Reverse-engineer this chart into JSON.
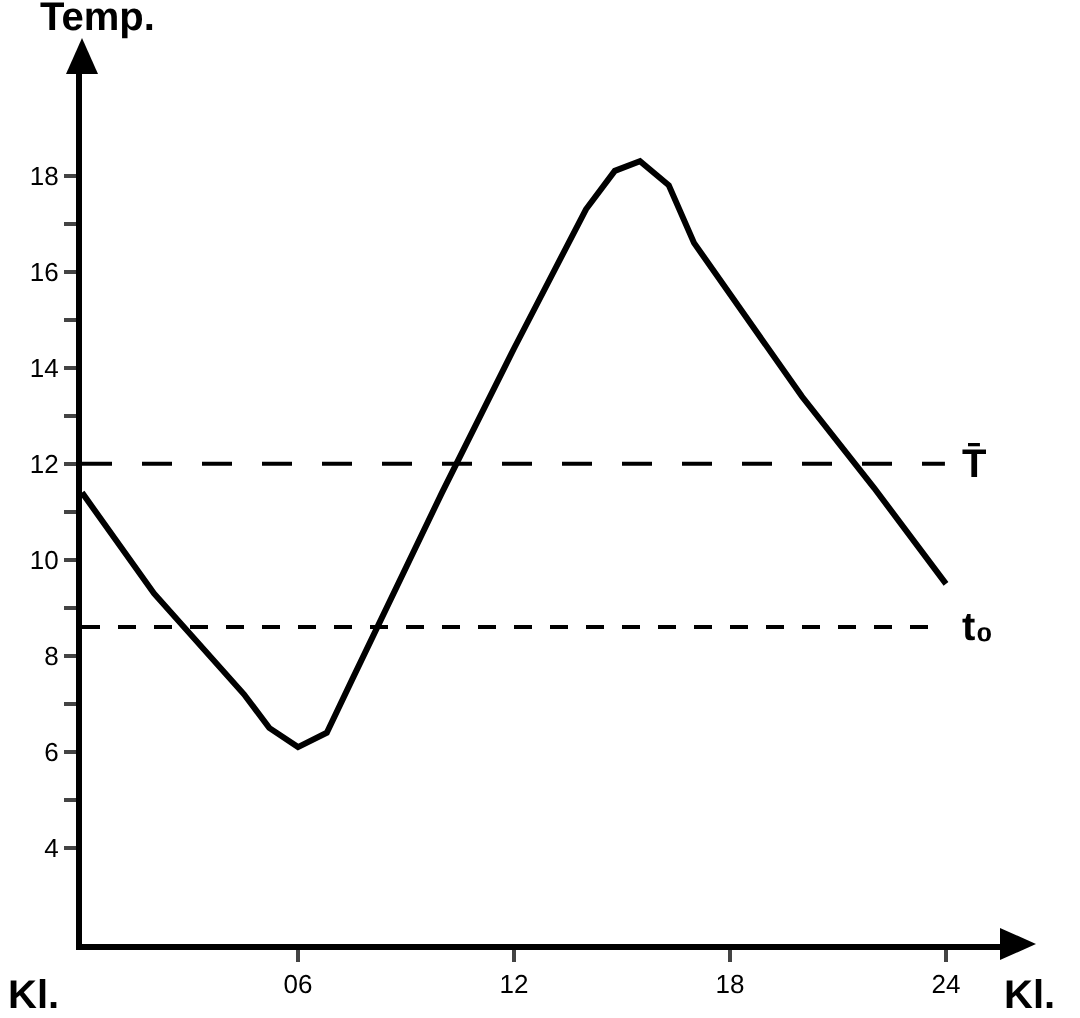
{
  "chart_data": {
    "type": "line",
    "xlabel": "Kl.",
    "ylabel": "Temp.",
    "x": [
      0,
      2,
      4.5,
      5.2,
      6,
      6.8,
      7.5,
      10,
      12,
      14,
      14.8,
      15.5,
      16.3,
      17,
      20,
      22,
      24
    ],
    "series": [
      {
        "color": "#000000",
        "values": [
          11.4,
          9.3,
          7.2,
          6.5,
          6.1,
          6.4,
          7.5,
          11.4,
          14.4,
          17.3,
          18.1,
          18.3,
          17.8,
          16.6,
          13.4,
          11.5,
          9.5
        ]
      }
    ],
    "xlim": [
      0,
      25.5
    ],
    "ylim": [
      2,
      20.2
    ],
    "xticks": [
      {
        "value": 6,
        "label": "06"
      },
      12,
      18,
      24
    ],
    "yticks": [
      4,
      {
        "value": 5,
        "label": null
      },
      6,
      {
        "value": 7,
        "label": null
      },
      8,
      {
        "value": 9,
        "label": null
      },
      10,
      {
        "value": 11,
        "label": null
      },
      12,
      {
        "value": 13,
        "label": null
      },
      14,
      {
        "value": 15,
        "label": null
      },
      16,
      {
        "value": 17,
        "label": null
      },
      18
    ],
    "ref_lines": [
      {
        "axis": "y",
        "value": 12,
        "label": "T̄",
        "line_style": "dashed"
      },
      {
        "axis": "y",
        "value": 8.6,
        "label": "t₀",
        "line_style": "dotted"
      }
    ],
    "annotations": [
      "Kl."
    ],
    "grid": false,
    "marker": "none",
    "line_style": "solid"
  }
}
